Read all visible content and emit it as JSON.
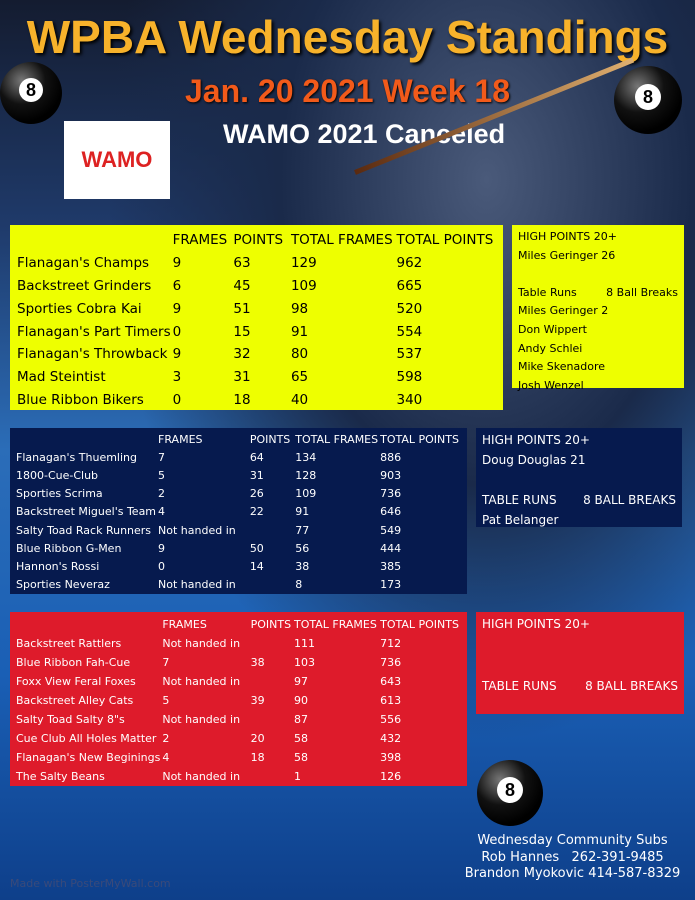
{
  "header": {
    "title": "WPBA Wednesday Standings",
    "date": "Jan. 20 2021 Week 18",
    "notice": "WAMO 2021 Canceled",
    "logo_text": "WAMO"
  },
  "columns": [
    "",
    "FRAMES",
    "POINTS",
    "TOTAL FRAMES",
    "TOTAL POINTS"
  ],
  "division1": {
    "rows": [
      [
        "Flanagan's Champs",
        "9",
        "63",
        "129",
        "962"
      ],
      [
        "Backstreet Grinders",
        "6",
        "45",
        "109",
        "665"
      ],
      [
        "Sporties Cobra Kai",
        "9",
        "51",
        "98",
        "520"
      ],
      [
        "Flanagan's Part Timers",
        "0",
        "15",
        "91",
        "554"
      ],
      [
        "Flanagan's Throwback",
        "9",
        "32",
        "80",
        "537"
      ],
      [
        "Mad Steintist",
        "3",
        "31",
        "65",
        "598"
      ],
      [
        "Blue Ribbon Bikers",
        "0",
        "18",
        "40",
        "340"
      ]
    ]
  },
  "division2": {
    "rows": [
      [
        "Flanagan's Thuemling",
        "7",
        "64",
        "134",
        "886"
      ],
      [
        "1800-Cue-Club",
        "5",
        "31",
        "128",
        "903"
      ],
      [
        "Sporties Scrima",
        "2",
        "26",
        "109",
        "736"
      ],
      [
        "Backstreet Miguel's Team",
        "4",
        "22",
        "91",
        "646"
      ],
      [
        "Salty Toad Rack Runners",
        "Not handed in",
        "",
        "77",
        "549"
      ],
      [
        "Blue Ribbon G-Men",
        "9",
        "50",
        "56",
        "444"
      ],
      [
        "Hannon's Rossi",
        "0",
        "14",
        "38",
        "385"
      ],
      [
        "Sporties Neveraz",
        "Not handed in",
        "",
        "8",
        "173"
      ]
    ]
  },
  "division3": {
    "rows": [
      [
        "Backstreet Rattlers",
        "Not handed in",
        "",
        "111",
        "712"
      ],
      [
        "Blue Ribbon Fah-Cue",
        "7",
        "38",
        "103",
        "736"
      ],
      [
        "Foxx View Feral Foxes",
        "Not handed in",
        "",
        "97",
        "643"
      ],
      [
        "Backstreet Alley Cats",
        "5",
        "39",
        "90",
        "613"
      ],
      [
        "Salty Toad Salty 8\"s",
        "Not handed in",
        "",
        "87",
        "556"
      ],
      [
        "Cue Club All Holes Matter",
        "2",
        "20",
        "58",
        "432"
      ],
      [
        "Flanagan's New Beginings",
        "4",
        "18",
        "58",
        "398"
      ],
      [
        "The Salty Beans",
        "Not handed in",
        "",
        "1",
        "126"
      ]
    ]
  },
  "side1": {
    "high_label": "HIGH POINTS 20+",
    "high": "Miles Geringer 26",
    "runs_label": "Table Runs",
    "breaks_label": "8 Ball Breaks",
    "runs": [
      "Miles Geringer 2",
      "Don Wippert",
      "Andy Schlei",
      "Mike Skenadore",
      "Josh Wenzel"
    ]
  },
  "side2": {
    "high_label": "HIGH POINTS 20+",
    "high": "Doug Douglas 21",
    "runs_label": "TABLE RUNS",
    "breaks_label": "8 BALL BREAKS",
    "runs": [
      "Pat Belanger"
    ]
  },
  "side3": {
    "high_label": "HIGH POINTS 20+",
    "runs_label": "TABLE RUNS",
    "breaks_label": "8 BALL BREAKS"
  },
  "footer": {
    "subs_title": "Wednesday Community Subs",
    "sub1": "Rob Hannes   262-391-9485",
    "sub2": "Brandon Myokovic 414-587-8329",
    "made_with": "Made with PosterMyWall.com"
  },
  "colors": {
    "division1": "#eeff00",
    "division2": "#061a4e",
    "division3": "#de1b2b",
    "title": "#f7b22b",
    "date": "#f25a1a"
  }
}
